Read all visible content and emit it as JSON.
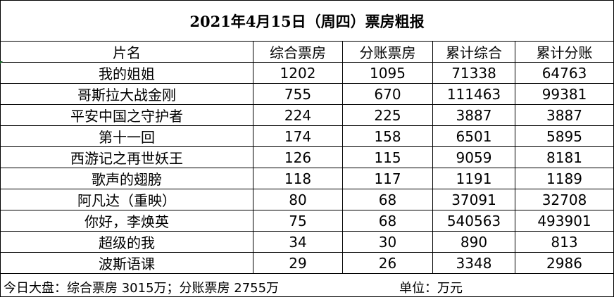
{
  "title": "2021年4月15日（周四）票房粗报",
  "columns": [
    "片名",
    "综合票房",
    "分账票房",
    "累计综合",
    "累计分账"
  ],
  "rows": [
    [
      "我的姐姐",
      "1202",
      "1095",
      "71338",
      "64763"
    ],
    [
      "哥斯拉大战金刚",
      "755",
      "670",
      "111463",
      "99381"
    ],
    [
      "平安中国之守护者",
      "224",
      "225",
      "3887",
      "3887"
    ],
    [
      "第十一回",
      "174",
      "158",
      "6501",
      "5895"
    ],
    [
      "西游记之再世妖王",
      "126",
      "115",
      "9059",
      "8181"
    ],
    [
      "歌声的翅膀",
      "118",
      "117",
      "1191",
      "1189"
    ],
    [
      "阿凡达（重映）",
      "80",
      "68",
      "37091",
      "32708"
    ],
    [
      "你好，李焕英",
      "75",
      "68",
      "540563",
      "493901"
    ],
    [
      "超级的我",
      "34",
      "30",
      "890",
      "813"
    ],
    [
      "波斯语课",
      "29",
      "26",
      "3348",
      "2986"
    ]
  ],
  "footer": {
    "total": "今日大盘：综合票房 3015万；分账票房 2755万",
    "unit": "单位：万元"
  }
}
